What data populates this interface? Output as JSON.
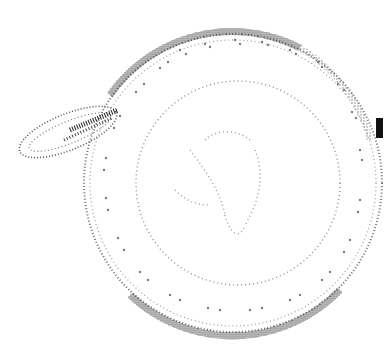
{
  "figure": {
    "subject": "dotted-seal-sketch",
    "colors": {
      "background": "#ffffff",
      "stipple": "#8a8a8a",
      "stipple_dark": "#3a3a3a",
      "marker": "#111111"
    }
  }
}
